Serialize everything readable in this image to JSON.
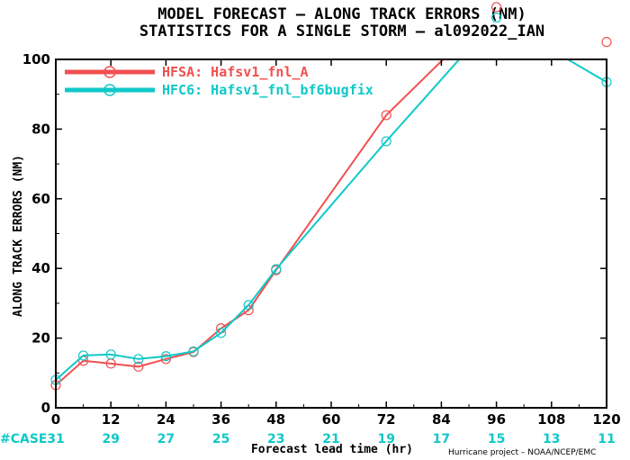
{
  "title_line1": "MODEL FORECAST – ALONG TRACK ERRORS (NM)",
  "title_line2": "STATISTICS FOR A SINGLE STORM – al092022_IAN",
  "credit": "Hurricane project – NOAA/NCEP/EMC",
  "case_label": "#CASE",
  "chart_data": {
    "type": "line",
    "xlabel": "Forecast lead time (hr)",
    "ylabel": "ALONG TRACK ERRORS (NM)",
    "xlim": [
      0,
      120
    ],
    "ylim": [
      0,
      100
    ],
    "x_ticks": [
      0,
      12,
      24,
      36,
      48,
      60,
      72,
      84,
      96,
      108,
      120
    ],
    "y_ticks": [
      0,
      20,
      40,
      60,
      80,
      100
    ],
    "grid": false,
    "legend_position": "top-left",
    "case_counts": [
      "31",
      "29",
      "27",
      "25",
      "23",
      "21",
      "19",
      "17",
      "15",
      "13",
      "11"
    ],
    "series": [
      {
        "name": "HFSA: Hafsv1_fnl_A",
        "color": "#f05050",
        "x": [
          0,
          6,
          12,
          18,
          24,
          30,
          36,
          42,
          48,
          72,
          96,
          120
        ],
        "y": [
          6.5,
          13.5,
          12.7,
          11.8,
          14,
          16,
          22.8,
          28,
          39.5,
          84,
          115,
          105
        ]
      },
      {
        "name": "HFC6: Hafsv1_fnl_bf6bugfix",
        "color": "#10c8c8",
        "x": [
          0,
          6,
          12,
          18,
          24,
          30,
          36,
          42,
          48,
          72,
          96,
          120
        ],
        "y": [
          8,
          15,
          15.3,
          14,
          14.8,
          16.2,
          21.5,
          29.5,
          39.8,
          76.5,
          112,
          93.5
        ]
      }
    ]
  }
}
